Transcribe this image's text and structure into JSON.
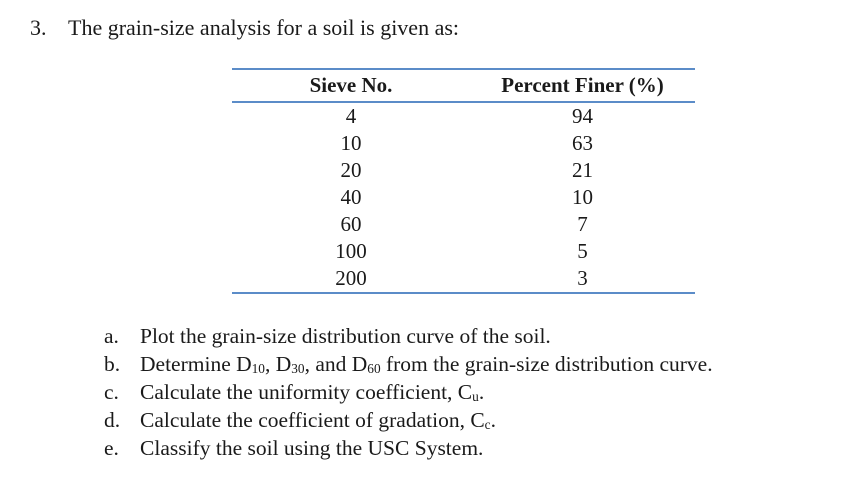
{
  "problem": {
    "number": "3.",
    "statement": "The grain-size analysis for a soil is given as:"
  },
  "table": {
    "headers": [
      "Sieve No.",
      "Percent Finer (%)"
    ],
    "rows": [
      [
        "4",
        "94"
      ],
      [
        "10",
        "63"
      ],
      [
        "20",
        "21"
      ],
      [
        "40",
        "10"
      ],
      [
        "60",
        "7"
      ],
      [
        "100",
        "5"
      ],
      [
        "200",
        "3"
      ]
    ],
    "rule_color": "#5b8cc8"
  },
  "tasks": [
    {
      "marker": "a.",
      "text": "Plot the grain-size distribution curve of the soil."
    },
    {
      "marker": "b.",
      "pre": "Determine D",
      "s1": "10",
      "mid1": ", D",
      "s2": "30",
      "mid2": ", and D",
      "s3": "60",
      "post": " from the grain-size distribution curve."
    },
    {
      "marker": "c.",
      "pre": "Calculate the uniformity coefficient, C",
      "sub": "u",
      "post": "."
    },
    {
      "marker": "d.",
      "pre": "Calculate the coefficient of gradation, C",
      "sub": "c",
      "post": "."
    },
    {
      "marker": "e.",
      "text": "Classify the soil using the USC System."
    }
  ]
}
